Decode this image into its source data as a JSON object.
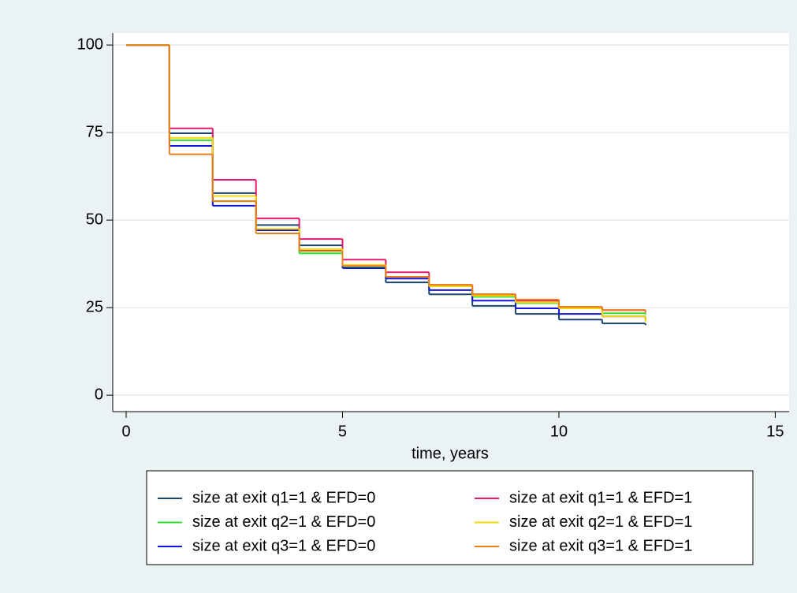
{
  "chart_data": {
    "type": "step",
    "x_label": "time, years",
    "x": [
      0,
      1,
      2,
      3,
      4,
      5,
      6,
      7,
      8,
      9,
      10,
      11,
      12
    ],
    "series": [
      {
        "name": "size at exit q1=1 & EFD=0",
        "color": "#1a476f",
        "values": [
          100,
          74.8,
          57.7,
          48.6,
          42.8,
          36.3,
          32.2,
          28.8,
          25.5,
          23.2,
          21.6,
          20.5,
          20
        ]
      },
      {
        "name": "size at exit q2=1 & EFD=0",
        "color": "#2ee02e",
        "values": [
          100,
          72.8,
          55.4,
          47.3,
          40.5,
          36.5,
          33.8,
          31.1,
          28.1,
          26.3,
          24.8,
          23.4,
          23
        ]
      },
      {
        "name": "size at exit q3=1 & EFD=0",
        "color": "#1414dc",
        "values": [
          100,
          71.2,
          54.1,
          47.1,
          41.4,
          36.3,
          33.3,
          30,
          27,
          24.8,
          23.2,
          22.5,
          21.5
        ]
      },
      {
        "name": "size at exit q1=1 & EFD=1",
        "color": "#e8186c",
        "values": [
          100,
          76.2,
          61.5,
          50.5,
          44.6,
          38.7,
          35.1,
          31.5,
          28.8,
          27,
          25.2,
          24.3,
          24
        ]
      },
      {
        "name": "size at exit q2=1 & EFD=1",
        "color": "#f5d800",
        "values": [
          100,
          73.5,
          56.9,
          47.5,
          41.7,
          37.2,
          33.8,
          31.1,
          28.4,
          26.5,
          24.8,
          22.5,
          21
        ]
      },
      {
        "name": "size at exit q3=1 & EFD=1",
        "color": "#e8801a",
        "values": [
          100,
          68.8,
          55.4,
          46.2,
          41.2,
          36.9,
          33.8,
          31.5,
          28.8,
          27.3,
          25.2,
          24.3,
          23.5
        ]
      }
    ],
    "xlim": [
      -0.31,
      15.32
    ],
    "ylim": [
      -4.7,
      103.4
    ],
    "xticks": [
      0,
      5,
      10,
      15
    ],
    "yticks": [
      0,
      25,
      50,
      75,
      100
    ],
    "grid": true,
    "legend": "bottom"
  }
}
